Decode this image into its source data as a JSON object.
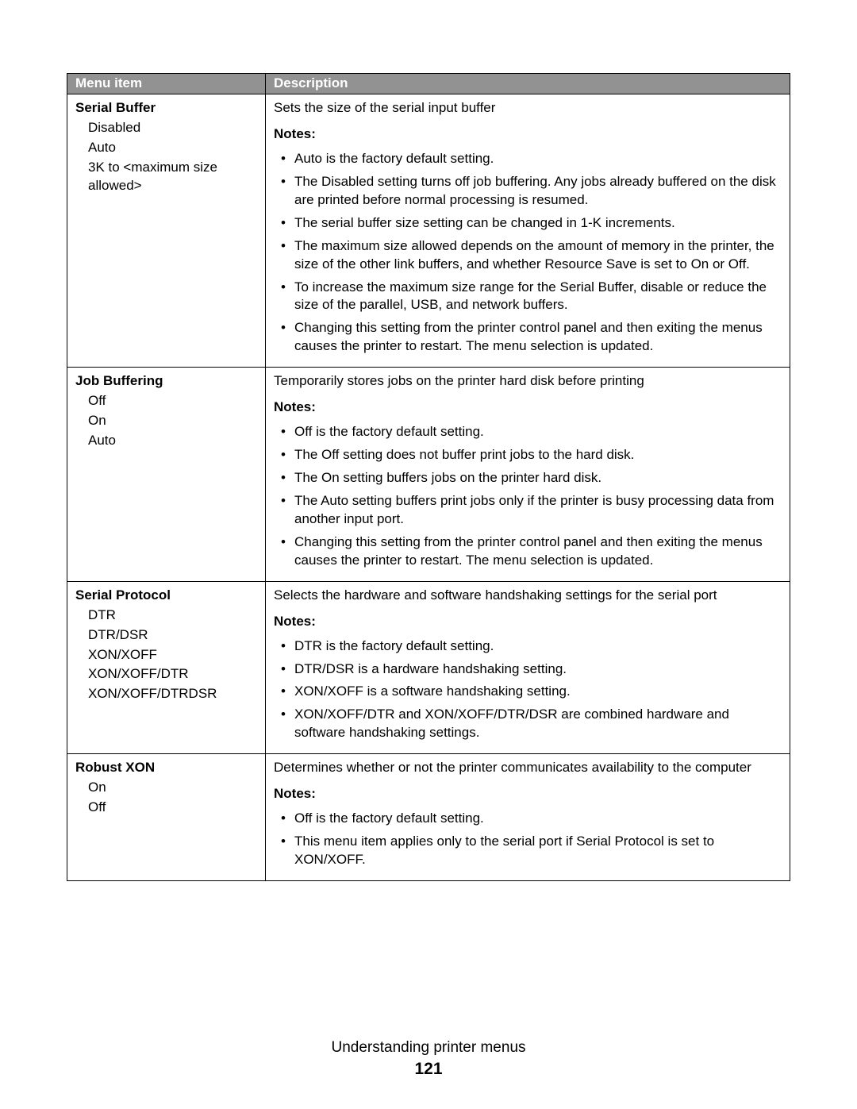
{
  "columns": {
    "menu_item": "Menu item",
    "description": "Description"
  },
  "rows": [
    {
      "menu_title": "Serial Buffer",
      "options": [
        "Disabled",
        "Auto",
        "3K to <maximum size allowed>"
      ],
      "desc": "Sets the size of the serial input buffer",
      "notes_label": "Notes:",
      "notes": [
        "Auto is the factory default setting.",
        "The Disabled setting turns off job buffering. Any jobs already buffered on the disk are printed before normal processing is resumed.",
        "The serial buffer size setting can be changed in 1-K increments.",
        "The maximum size allowed depends on the amount of memory in the printer, the size of the other link buffers, and whether Resource Save is set to On or Off.",
        "To increase the maximum size range for the Serial Buffer, disable or reduce the size of the parallel, USB, and network buffers.",
        "Changing this setting from the printer control panel and then exiting the menus causes the printer to restart. The menu selection is updated."
      ]
    },
    {
      "menu_title": "Job Buffering",
      "options": [
        "Off",
        "On",
        "Auto"
      ],
      "desc": "Temporarily stores jobs on the printer hard disk before printing",
      "notes_label": "Notes:",
      "notes": [
        "Off is the factory default setting.",
        "The Off setting does not buffer print jobs to the hard disk.",
        "The On setting buffers jobs on the printer hard disk.",
        "The Auto setting buffers print jobs only if the printer is busy processing data from another input port.",
        "Changing this setting from the printer control panel and then exiting the menus causes the printer to restart. The menu selection is updated."
      ]
    },
    {
      "menu_title": "Serial Protocol",
      "options": [
        "DTR",
        "DTR/DSR",
        "XON/XOFF",
        "XON/XOFF/DTR",
        "XON/XOFF/DTRDSR"
      ],
      "desc": "Selects the hardware and software handshaking settings for the serial port",
      "notes_label": "Notes:",
      "notes": [
        "DTR is the factory default setting.",
        "DTR/DSR is a hardware handshaking setting.",
        "XON/XOFF is a software handshaking setting.",
        "XON/XOFF/DTR and XON/XOFF/DTR/DSR are combined hardware and software handshaking settings."
      ]
    },
    {
      "menu_title": "Robust XON",
      "options": [
        "On",
        "Off"
      ],
      "desc": "Determines whether or not the printer communicates availability to the computer",
      "notes_label": "Notes:",
      "notes": [
        "Off is the factory default setting.",
        "This menu item applies only to the serial port if Serial Protocol is set to XON/XOFF."
      ]
    }
  ],
  "footer": {
    "title": "Understanding printer menus",
    "page": "121"
  }
}
